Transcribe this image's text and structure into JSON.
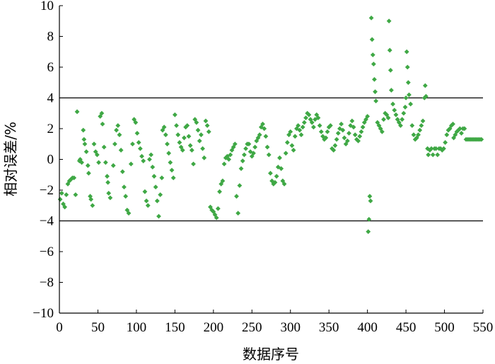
{
  "chart_data": {
    "type": "scatter",
    "title": "",
    "xlabel": "数据序号",
    "ylabel": "相对误差/%",
    "xlim": [
      0,
      550
    ],
    "ylim": [
      -10,
      10
    ],
    "x_ticks": [
      0,
      50,
      100,
      150,
      200,
      250,
      300,
      350,
      400,
      450,
      500,
      550
    ],
    "y_ticks": [
      -10,
      -8,
      -6,
      -4,
      -2,
      0,
      2,
      4,
      6,
      8,
      10
    ],
    "grid": false,
    "legend": "none",
    "marker_color": "#3fa845",
    "marker": "diamond",
    "reference_lines": [
      4,
      -4
    ],
    "reference_line_color": "#000000",
    "series": [
      {
        "points": [
          [
            1,
            -2.6
          ],
          [
            3,
            -2.2
          ],
          [
            5,
            -2.9
          ],
          [
            7,
            -3.1
          ],
          [
            9,
            -2.3
          ],
          [
            11,
            -1.6
          ],
          [
            13,
            -1.4
          ],
          [
            15,
            -1.3
          ],
          [
            17,
            -1.2
          ],
          [
            19,
            -1.2
          ],
          [
            21,
            -2.3
          ],
          [
            23,
            3.1
          ],
          [
            26,
            -0.1
          ],
          [
            27,
            0.0
          ],
          [
            29,
            -0.2
          ],
          [
            31,
            1.9
          ],
          [
            32,
            1.3
          ],
          [
            33,
            1.0
          ],
          [
            35,
            0.5
          ],
          [
            37,
            -0.4
          ],
          [
            38,
            -0.9
          ],
          [
            40,
            -2.4
          ],
          [
            41,
            -2.6
          ],
          [
            43,
            -3.0
          ],
          [
            45,
            1.0
          ],
          [
            47,
            0.5
          ],
          [
            49,
            0.3
          ],
          [
            51,
            -0.2
          ],
          [
            53,
            2.8
          ],
          [
            55,
            3.0
          ],
          [
            56,
            2.3
          ],
          [
            58,
            0.8
          ],
          [
            60,
            -0.2
          ],
          [
            62,
            -1.1
          ],
          [
            63,
            -1.5
          ],
          [
            64,
            -2.2
          ],
          [
            66,
            -2.5
          ],
          [
            70,
            -0.4
          ],
          [
            72,
            1.0
          ],
          [
            74,
            1.9
          ],
          [
            76,
            2.2
          ],
          [
            78,
            1.6
          ],
          [
            80,
            0.6
          ],
          [
            82,
            -0.8
          ],
          [
            84,
            -1.8
          ],
          [
            86,
            -2.4
          ],
          [
            88,
            -3.3
          ],
          [
            90,
            -3.5
          ],
          [
            93,
            -0.3
          ],
          [
            95,
            1.0
          ],
          [
            97,
            2.6
          ],
          [
            99,
            2.4
          ],
          [
            101,
            1.7
          ],
          [
            103,
            1.1
          ],
          [
            105,
            0.7
          ],
          [
            107,
            0.2
          ],
          [
            109,
            -0.1
          ],
          [
            111,
            -2.1
          ],
          [
            113,
            -2.7
          ],
          [
            115,
            -3.0
          ],
          [
            117,
            0.0
          ],
          [
            119,
            0.3
          ],
          [
            121,
            -0.5
          ],
          [
            123,
            -1.1
          ],
          [
            125,
            -1.8
          ],
          [
            127,
            -2.7
          ],
          [
            129,
            -3.7
          ],
          [
            131,
            -2.3
          ],
          [
            133,
            -1.2
          ],
          [
            134,
            1.9
          ],
          [
            136,
            2.1
          ],
          [
            138,
            1.6
          ],
          [
            140,
            1.0
          ],
          [
            142,
            0.4
          ],
          [
            144,
            -0.2
          ],
          [
            146,
            -0.7
          ],
          [
            148,
            -1.2
          ],
          [
            150,
            2.9
          ],
          [
            152,
            2.2
          ],
          [
            154,
            1.6
          ],
          [
            156,
            1.1
          ],
          [
            158,
            0.8
          ],
          [
            160,
            0.6
          ],
          [
            162,
            1.4
          ],
          [
            164,
            2.1
          ],
          [
            166,
            2.2
          ],
          [
            168,
            1.5
          ],
          [
            170,
            0.9
          ],
          [
            172,
            0.6
          ],
          [
            174,
            -0.3
          ],
          [
            176,
            2.6
          ],
          [
            178,
            2.4
          ],
          [
            180,
            1.9
          ],
          [
            182,
            1.2
          ],
          [
            184,
            1.6
          ],
          [
            186,
            0.7
          ],
          [
            188,
            0.1
          ],
          [
            190,
            2.5
          ],
          [
            192,
            2.2
          ],
          [
            194,
            1.8
          ],
          [
            196,
            -3.1
          ],
          [
            198,
            -3.3
          ],
          [
            200,
            -3.4
          ],
          [
            202,
            -3.6
          ],
          [
            204,
            -3.8
          ],
          [
            206,
            -3.2
          ],
          [
            208,
            -2.1
          ],
          [
            210,
            -1.6
          ],
          [
            212,
            -1.4
          ],
          [
            214,
            -0.3
          ],
          [
            216,
            0.1
          ],
          [
            218,
            0.2
          ],
          [
            220,
            0.0
          ],
          [
            222,
            0.3
          ],
          [
            224,
            0.6
          ],
          [
            226,
            0.8
          ],
          [
            228,
            1.0
          ],
          [
            230,
            -2.4
          ],
          [
            232,
            -3.5
          ],
          [
            234,
            -1.7
          ],
          [
            236,
            -0.6
          ],
          [
            238,
            -0.1
          ],
          [
            240,
            0.3
          ],
          [
            242,
            0.7
          ],
          [
            244,
            1.0
          ],
          [
            246,
            1.0
          ],
          [
            248,
            0.5
          ],
          [
            250,
            0.2
          ],
          [
            252,
            0.4
          ],
          [
            254,
            0.8
          ],
          [
            256,
            1.2
          ],
          [
            258,
            1.4
          ],
          [
            260,
            1.6
          ],
          [
            262,
            2.1
          ],
          [
            264,
            2.3
          ],
          [
            266,
            2.0
          ],
          [
            268,
            1.5
          ],
          [
            270,
            0.8
          ],
          [
            272,
            0.3
          ],
          [
            274,
            -0.9
          ],
          [
            276,
            -1.4
          ],
          [
            278,
            -1.6
          ],
          [
            280,
            -1.5
          ],
          [
            282,
            -1.1
          ],
          [
            284,
            -0.5
          ],
          [
            286,
            0.1
          ],
          [
            288,
            -0.6
          ],
          [
            290,
            -1.4
          ],
          [
            292,
            -1.6
          ],
          [
            294,
            0.4
          ],
          [
            296,
            1.1
          ],
          [
            298,
            1.6
          ],
          [
            300,
            1.8
          ],
          [
            302,
            0.9
          ],
          [
            304,
            0.6
          ],
          [
            306,
            1.5
          ],
          [
            308,
            2.0
          ],
          [
            310,
            2.2
          ],
          [
            312,
            1.9
          ],
          [
            314,
            1.6
          ],
          [
            316,
            2.1
          ],
          [
            318,
            2.4
          ],
          [
            320,
            2.7
          ],
          [
            322,
            3.0
          ],
          [
            324,
            2.9
          ],
          [
            326,
            2.6
          ],
          [
            328,
            2.4
          ],
          [
            330,
            2.1
          ],
          [
            332,
            2.6
          ],
          [
            334,
            2.9
          ],
          [
            336,
            2.7
          ],
          [
            338,
            2.2
          ],
          [
            340,
            1.8
          ],
          [
            342,
            1.5
          ],
          [
            344,
            1.3
          ],
          [
            346,
            1.4
          ],
          [
            348,
            1.8
          ],
          [
            350,
            2.1
          ],
          [
            352,
            2.2
          ],
          [
            354,
            0.7
          ],
          [
            356,
            0.6
          ],
          [
            358,
            0.9
          ],
          [
            360,
            1.3
          ],
          [
            362,
            1.7
          ],
          [
            364,
            2.0
          ],
          [
            366,
            2.3
          ],
          [
            368,
            1.9
          ],
          [
            370,
            1.4
          ],
          [
            372,
            1.0
          ],
          [
            374,
            1.2
          ],
          [
            376,
            1.7
          ],
          [
            378,
            2.2
          ],
          [
            380,
            2.5
          ],
          [
            382,
            2.1
          ],
          [
            384,
            1.6
          ],
          [
            386,
            1.3
          ],
          [
            388,
            1.2
          ],
          [
            390,
            1.5
          ],
          [
            392,
            1.8
          ],
          [
            394,
            2.1
          ],
          [
            396,
            2.4
          ],
          [
            398,
            2.6
          ],
          [
            400,
            2.8
          ],
          [
            401,
            -4.7
          ],
          [
            402,
            -3.9
          ],
          [
            403,
            -2.4
          ],
          [
            404,
            -2.7
          ],
          [
            405,
            9.2
          ],
          [
            406,
            7.8
          ],
          [
            407,
            6.8
          ],
          [
            408,
            6.2
          ],
          [
            409,
            5.2
          ],
          [
            410,
            4.4
          ],
          [
            411,
            3.8
          ],
          [
            413,
            2.4
          ],
          [
            415,
            2.2
          ],
          [
            417,
            2.0
          ],
          [
            419,
            1.8
          ],
          [
            421,
            2.6
          ],
          [
            423,
            3.0
          ],
          [
            425,
            2.9
          ],
          [
            427,
            2.7
          ],
          [
            428,
            9.0
          ],
          [
            429,
            7.1
          ],
          [
            430,
            5.8
          ],
          [
            431,
            4.5
          ],
          [
            433,
            3.6
          ],
          [
            435,
            3.2
          ],
          [
            437,
            2.9
          ],
          [
            439,
            2.6
          ],
          [
            441,
            2.4
          ],
          [
            443,
            2.2
          ],
          [
            445,
            2.6
          ],
          [
            447,
            3.0
          ],
          [
            449,
            3.4
          ],
          [
            450,
            4.0
          ],
          [
            451,
            7.0
          ],
          [
            452,
            6.0
          ],
          [
            453,
            5.0
          ],
          [
            454,
            4.2
          ],
          [
            456,
            3.6
          ],
          [
            458,
            2.2
          ],
          [
            460,
            1.6
          ],
          [
            462,
            1.3
          ],
          [
            464,
            1.4
          ],
          [
            466,
            1.6
          ],
          [
            468,
            1.9
          ],
          [
            470,
            2.2
          ],
          [
            472,
            2.5
          ],
          [
            474,
            4.0
          ],
          [
            475,
            4.8
          ],
          [
            476,
            4.1
          ],
          [
            478,
            0.7
          ],
          [
            479,
            0.3
          ],
          [
            481,
            0.6
          ],
          [
            483,
            0.7
          ],
          [
            485,
            0.3
          ],
          [
            487,
            0.7
          ],
          [
            489,
            0.7
          ],
          [
            491,
            0.3
          ],
          [
            493,
            0.7
          ],
          [
            495,
            0.7
          ],
          [
            497,
            0.6
          ],
          [
            499,
            0.7
          ],
          [
            501,
            1.1
          ],
          [
            503,
            1.6
          ],
          [
            505,
            1.9
          ],
          [
            507,
            2.0
          ],
          [
            509,
            2.2
          ],
          [
            511,
            2.3
          ],
          [
            512,
            1.4
          ],
          [
            514,
            1.6
          ],
          [
            516,
            1.8
          ],
          [
            518,
            1.9
          ],
          [
            520,
            2.0
          ],
          [
            522,
            1.7
          ],
          [
            524,
            2.0
          ],
          [
            526,
            2.0
          ],
          [
            528,
            1.3
          ],
          [
            530,
            1.3
          ],
          [
            532,
            1.3
          ],
          [
            534,
            1.3
          ],
          [
            536,
            1.3
          ],
          [
            538,
            1.3
          ],
          [
            540,
            1.3
          ],
          [
            542,
            1.3
          ],
          [
            544,
            1.3
          ],
          [
            546,
            1.3
          ],
          [
            548,
            1.3
          ]
        ]
      }
    ]
  }
}
